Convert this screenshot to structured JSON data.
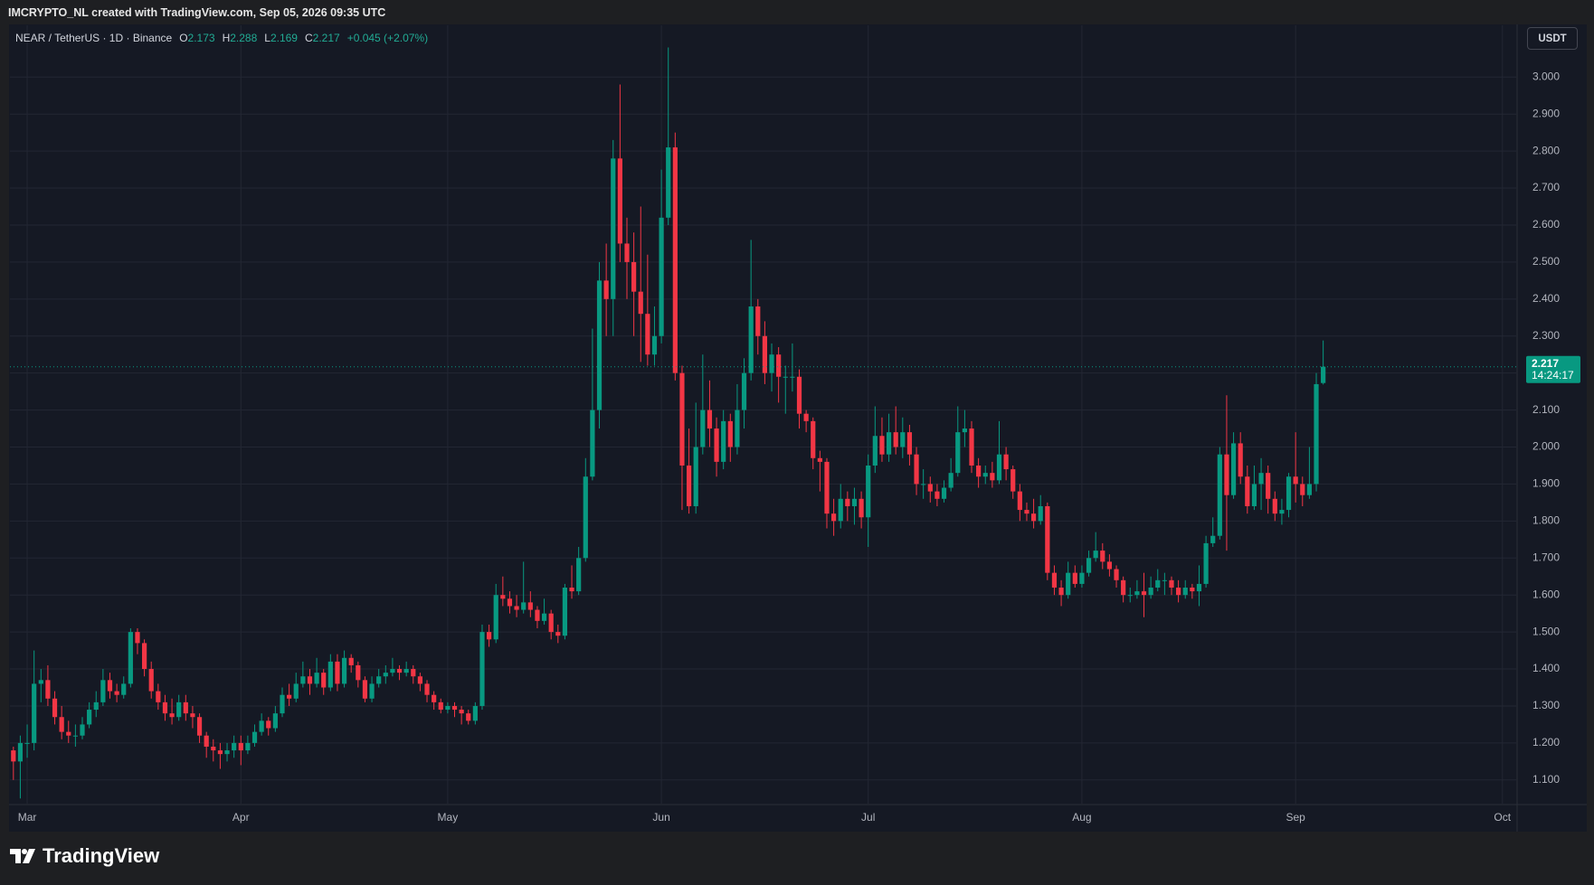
{
  "header": {
    "attribution": "IMCRYPTO_NL created with TradingView.com, Sep 05, 2026 09:35 UTC"
  },
  "footer": {
    "logo": "TradingView"
  },
  "chart_data": {
    "type": "candlestick",
    "symbol": "NEAR / TetherUS · 1D · Binance",
    "ohlc_labels": [
      "O",
      "H",
      "L",
      "C"
    ],
    "change": "+0.045 (+2.07%)",
    "currency": "USDT",
    "countdown": "14:24:17",
    "up_color": "#089981",
    "down_color": "#f23645",
    "grid": true,
    "ylim": [
      1.036,
      3.14
    ],
    "yticks": [
      {
        "value": 1.1,
        "label": "1.100"
      },
      {
        "value": 1.2,
        "label": "1.200"
      },
      {
        "value": 1.3,
        "label": "1.300"
      },
      {
        "value": 1.4,
        "label": "1.400"
      },
      {
        "value": 1.5,
        "label": "1.500"
      },
      {
        "value": 1.6,
        "label": "1.600"
      },
      {
        "value": 1.7,
        "label": "1.700"
      },
      {
        "value": 1.8,
        "label": "1.800"
      },
      {
        "value": 1.9,
        "label": "1.900"
      },
      {
        "value": 2.0,
        "label": "2.000"
      },
      {
        "value": 2.1,
        "label": "2.100"
      },
      {
        "value": 2.2,
        "label": "2.200"
      },
      {
        "value": 2.3,
        "label": "2.300"
      },
      {
        "value": 2.4,
        "label": "2.400"
      },
      {
        "value": 2.5,
        "label": "2.500"
      },
      {
        "value": 2.6,
        "label": "2.600"
      },
      {
        "value": 2.7,
        "label": "2.700"
      },
      {
        "value": 2.8,
        "label": "2.800"
      },
      {
        "value": 2.9,
        "label": "2.900"
      },
      {
        "value": 3.0,
        "label": "3.000"
      }
    ],
    "xlim": [
      -0.5,
      218
    ],
    "xticks": [
      {
        "value": 2,
        "label": "Mar"
      },
      {
        "value": 33,
        "label": "Apr"
      },
      {
        "value": 63,
        "label": "May"
      },
      {
        "value": 94,
        "label": "Jun"
      },
      {
        "value": 124,
        "label": "Jul"
      },
      {
        "value": 155,
        "label": "Aug"
      },
      {
        "value": 186,
        "label": "Sep"
      },
      {
        "value": 216,
        "label": "Oct"
      }
    ],
    "ohlc": [
      [
        1.18,
        1.19,
        1.1,
        1.15
      ],
      [
        1.15,
        1.22,
        1.05,
        1.2
      ],
      [
        1.2,
        1.25,
        1.16,
        1.2
      ],
      [
        1.2,
        1.45,
        1.18,
        1.36
      ],
      [
        1.36,
        1.4,
        1.31,
        1.37
      ],
      [
        1.37,
        1.41,
        1.3,
        1.32
      ],
      [
        1.32,
        1.34,
        1.25,
        1.27
      ],
      [
        1.27,
        1.3,
        1.21,
        1.23
      ],
      [
        1.23,
        1.26,
        1.2,
        1.22
      ],
      [
        1.22,
        1.25,
        1.19,
        1.22
      ],
      [
        1.22,
        1.27,
        1.21,
        1.25
      ],
      [
        1.25,
        1.31,
        1.24,
        1.29
      ],
      [
        1.29,
        1.34,
        1.27,
        1.31
      ],
      [
        1.31,
        1.4,
        1.3,
        1.37
      ],
      [
        1.37,
        1.39,
        1.32,
        1.34
      ],
      [
        1.34,
        1.36,
        1.31,
        1.33
      ],
      [
        1.33,
        1.38,
        1.32,
        1.36
      ],
      [
        1.36,
        1.51,
        1.35,
        1.5
      ],
      [
        1.5,
        1.51,
        1.44,
        1.47
      ],
      [
        1.47,
        1.48,
        1.38,
        1.4
      ],
      [
        1.4,
        1.42,
        1.32,
        1.34
      ],
      [
        1.34,
        1.36,
        1.29,
        1.31
      ],
      [
        1.31,
        1.33,
        1.26,
        1.28
      ],
      [
        1.28,
        1.32,
        1.25,
        1.27
      ],
      [
        1.27,
        1.33,
        1.26,
        1.31
      ],
      [
        1.31,
        1.33,
        1.26,
        1.28
      ],
      [
        1.28,
        1.3,
        1.24,
        1.27
      ],
      [
        1.27,
        1.28,
        1.2,
        1.22
      ],
      [
        1.22,
        1.23,
        1.16,
        1.19
      ],
      [
        1.19,
        1.21,
        1.15,
        1.18
      ],
      [
        1.18,
        1.2,
        1.13,
        1.17
      ],
      [
        1.17,
        1.2,
        1.15,
        1.18
      ],
      [
        1.18,
        1.22,
        1.16,
        1.2
      ],
      [
        1.2,
        1.22,
        1.14,
        1.18
      ],
      [
        1.18,
        1.22,
        1.17,
        1.2
      ],
      [
        1.2,
        1.25,
        1.19,
        1.23
      ],
      [
        1.23,
        1.28,
        1.22,
        1.26
      ],
      [
        1.26,
        1.27,
        1.22,
        1.24
      ],
      [
        1.24,
        1.3,
        1.23,
        1.28
      ],
      [
        1.28,
        1.35,
        1.27,
        1.33
      ],
      [
        1.33,
        1.36,
        1.3,
        1.32
      ],
      [
        1.32,
        1.39,
        1.31,
        1.36
      ],
      [
        1.36,
        1.42,
        1.35,
        1.38
      ],
      [
        1.38,
        1.4,
        1.33,
        1.36
      ],
      [
        1.36,
        1.43,
        1.35,
        1.39
      ],
      [
        1.39,
        1.4,
        1.33,
        1.35
      ],
      [
        1.35,
        1.44,
        1.34,
        1.42
      ],
      [
        1.42,
        1.44,
        1.34,
        1.36
      ],
      [
        1.36,
        1.45,
        1.35,
        1.43
      ],
      [
        1.43,
        1.44,
        1.39,
        1.41
      ],
      [
        1.41,
        1.42,
        1.35,
        1.37
      ],
      [
        1.37,
        1.38,
        1.31,
        1.32
      ],
      [
        1.32,
        1.38,
        1.31,
        1.36
      ],
      [
        1.36,
        1.4,
        1.35,
        1.38
      ],
      [
        1.38,
        1.41,
        1.36,
        1.39
      ],
      [
        1.39,
        1.43,
        1.38,
        1.4
      ],
      [
        1.4,
        1.41,
        1.37,
        1.39
      ],
      [
        1.39,
        1.42,
        1.38,
        1.4
      ],
      [
        1.4,
        1.41,
        1.36,
        1.38
      ],
      [
        1.38,
        1.39,
        1.34,
        1.36
      ],
      [
        1.36,
        1.37,
        1.31,
        1.33
      ],
      [
        1.33,
        1.34,
        1.29,
        1.31
      ],
      [
        1.31,
        1.32,
        1.28,
        1.29
      ],
      [
        1.29,
        1.31,
        1.28,
        1.3
      ],
      [
        1.3,
        1.31,
        1.27,
        1.29
      ],
      [
        1.29,
        1.3,
        1.25,
        1.28
      ],
      [
        1.28,
        1.29,
        1.25,
        1.26
      ],
      [
        1.26,
        1.31,
        1.25,
        1.3
      ],
      [
        1.3,
        1.52,
        1.29,
        1.5
      ],
      [
        1.5,
        1.52,
        1.46,
        1.48
      ],
      [
        1.48,
        1.63,
        1.47,
        1.6
      ],
      [
        1.6,
        1.65,
        1.57,
        1.59
      ],
      [
        1.59,
        1.61,
        1.55,
        1.57
      ],
      [
        1.57,
        1.6,
        1.54,
        1.56
      ],
      [
        1.56,
        1.69,
        1.55,
        1.58
      ],
      [
        1.58,
        1.61,
        1.54,
        1.56
      ],
      [
        1.56,
        1.57,
        1.51,
        1.53
      ],
      [
        1.53,
        1.59,
        1.52,
        1.55
      ],
      [
        1.55,
        1.56,
        1.48,
        1.5
      ],
      [
        1.5,
        1.52,
        1.47,
        1.49
      ],
      [
        1.49,
        1.63,
        1.48,
        1.62
      ],
      [
        1.62,
        1.68,
        1.59,
        1.61
      ],
      [
        1.61,
        1.73,
        1.6,
        1.7
      ],
      [
        1.7,
        1.97,
        1.69,
        1.92
      ],
      [
        1.92,
        2.32,
        1.91,
        2.1
      ],
      [
        2.1,
        2.5,
        2.05,
        2.45
      ],
      [
        2.45,
        2.55,
        2.3,
        2.4
      ],
      [
        2.4,
        2.83,
        2.3,
        2.78
      ],
      [
        2.78,
        2.98,
        2.5,
        2.55
      ],
      [
        2.55,
        2.62,
        2.4,
        2.5
      ],
      [
        2.5,
        2.58,
        2.3,
        2.42
      ],
      [
        2.42,
        2.65,
        2.23,
        2.36
      ],
      [
        2.36,
        2.52,
        2.22,
        2.25
      ],
      [
        2.25,
        2.38,
        2.22,
        2.3
      ],
      [
        2.3,
        2.75,
        2.28,
        2.62
      ],
      [
        2.62,
        3.08,
        2.6,
        2.81
      ],
      [
        2.81,
        2.85,
        2.18,
        2.2
      ],
      [
        2.2,
        2.22,
        1.83,
        1.95
      ],
      [
        1.95,
        2.05,
        1.82,
        1.84
      ],
      [
        1.84,
        2.12,
        1.82,
        2.0
      ],
      [
        2.0,
        2.25,
        1.98,
        2.1
      ],
      [
        2.1,
        2.18,
        2.0,
        2.05
      ],
      [
        2.05,
        2.08,
        1.92,
        1.96
      ],
      [
        1.96,
        2.1,
        1.94,
        2.07
      ],
      [
        2.07,
        2.09,
        1.96,
        2.0
      ],
      [
        2.0,
        2.17,
        1.98,
        2.1
      ],
      [
        2.1,
        2.24,
        2.05,
        2.2
      ],
      [
        2.2,
        2.56,
        2.18,
        2.38
      ],
      [
        2.38,
        2.4,
        2.25,
        2.3
      ],
      [
        2.3,
        2.34,
        2.17,
        2.2
      ],
      [
        2.2,
        2.28,
        2.15,
        2.25
      ],
      [
        2.25,
        2.27,
        2.12,
        2.19
      ],
      [
        2.19,
        2.22,
        2.09,
        2.19
      ],
      [
        2.19,
        2.28,
        2.15,
        2.19
      ],
      [
        2.19,
        2.21,
        2.05,
        2.09
      ],
      [
        2.09,
        2.1,
        2.04,
        2.07
      ],
      [
        2.07,
        2.08,
        1.94,
        1.97
      ],
      [
        1.97,
        1.99,
        1.88,
        1.96
      ],
      [
        1.96,
        1.97,
        1.78,
        1.82
      ],
      [
        1.82,
        1.86,
        1.76,
        1.8
      ],
      [
        1.8,
        1.9,
        1.78,
        1.86
      ],
      [
        1.86,
        1.88,
        1.8,
        1.84
      ],
      [
        1.84,
        1.89,
        1.79,
        1.86
      ],
      [
        1.86,
        1.88,
        1.78,
        1.81
      ],
      [
        1.81,
        1.98,
        1.73,
        1.95
      ],
      [
        1.95,
        2.11,
        1.93,
        2.03
      ],
      [
        2.03,
        2.08,
        1.96,
        1.98
      ],
      [
        1.98,
        2.09,
        1.96,
        2.04
      ],
      [
        2.04,
        2.11,
        1.98,
        2.0
      ],
      [
        2.0,
        2.08,
        1.97,
        2.04
      ],
      [
        2.04,
        2.06,
        1.95,
        1.98
      ],
      [
        1.98,
        2.0,
        1.87,
        1.9
      ],
      [
        1.9,
        1.94,
        1.86,
        1.9
      ],
      [
        1.9,
        1.92,
        1.85,
        1.88
      ],
      [
        1.88,
        1.9,
        1.84,
        1.86
      ],
      [
        1.86,
        1.91,
        1.85,
        1.89
      ],
      [
        1.89,
        1.97,
        1.88,
        1.93
      ],
      [
        1.93,
        2.11,
        1.92,
        2.04
      ],
      [
        2.04,
        2.1,
        2.0,
        2.05
      ],
      [
        2.05,
        2.07,
        1.93,
        1.95
      ],
      [
        1.95,
        1.97,
        1.89,
        1.92
      ],
      [
        1.92,
        1.95,
        1.9,
        1.93
      ],
      [
        1.93,
        1.96,
        1.89,
        1.91
      ],
      [
        1.91,
        2.07,
        1.9,
        1.98
      ],
      [
        1.98,
        2.0,
        1.91,
        1.94
      ],
      [
        1.94,
        1.95,
        1.86,
        1.88
      ],
      [
        1.88,
        1.9,
        1.8,
        1.83
      ],
      [
        1.83,
        1.85,
        1.8,
        1.82
      ],
      [
        1.82,
        1.86,
        1.78,
        1.8
      ],
      [
        1.8,
        1.87,
        1.79,
        1.84
      ],
      [
        1.84,
        1.85,
        1.64,
        1.66
      ],
      [
        1.66,
        1.68,
        1.6,
        1.62
      ],
      [
        1.62,
        1.64,
        1.57,
        1.6
      ],
      [
        1.6,
        1.69,
        1.59,
        1.66
      ],
      [
        1.66,
        1.68,
        1.62,
        1.63
      ],
      [
        1.63,
        1.68,
        1.62,
        1.66
      ],
      [
        1.66,
        1.72,
        1.65,
        1.7
      ],
      [
        1.7,
        1.77,
        1.69,
        1.72
      ],
      [
        1.72,
        1.74,
        1.67,
        1.69
      ],
      [
        1.69,
        1.71,
        1.65,
        1.67
      ],
      [
        1.67,
        1.68,
        1.62,
        1.64
      ],
      [
        1.64,
        1.65,
        1.58,
        1.6
      ],
      [
        1.6,
        1.62,
        1.58,
        1.6
      ],
      [
        1.6,
        1.64,
        1.59,
        1.61
      ],
      [
        1.61,
        1.66,
        1.54,
        1.6
      ],
      [
        1.6,
        1.65,
        1.59,
        1.62
      ],
      [
        1.62,
        1.67,
        1.61,
        1.64
      ],
      [
        1.64,
        1.66,
        1.6,
        1.64
      ],
      [
        1.64,
        1.65,
        1.6,
        1.62
      ],
      [
        1.62,
        1.64,
        1.58,
        1.6
      ],
      [
        1.6,
        1.64,
        1.59,
        1.62
      ],
      [
        1.62,
        1.63,
        1.59,
        1.61
      ],
      [
        1.61,
        1.68,
        1.57,
        1.63
      ],
      [
        1.63,
        1.76,
        1.62,
        1.74
      ],
      [
        1.74,
        1.81,
        1.73,
        1.76
      ],
      [
        1.76,
        2.0,
        1.75,
        1.98
      ],
      [
        1.98,
        2.14,
        1.72,
        1.87
      ],
      [
        1.87,
        2.04,
        1.86,
        2.01
      ],
      [
        2.01,
        2.04,
        1.9,
        1.92
      ],
      [
        1.92,
        1.95,
        1.82,
        1.84
      ],
      [
        1.84,
        1.95,
        1.83,
        1.9
      ],
      [
        1.9,
        1.97,
        1.83,
        1.93
      ],
      [
        1.93,
        1.95,
        1.82,
        1.86
      ],
      [
        1.86,
        1.88,
        1.8,
        1.82
      ],
      [
        1.82,
        1.86,
        1.79,
        1.83
      ],
      [
        1.83,
        1.93,
        1.81,
        1.92
      ],
      [
        1.92,
        2.04,
        1.85,
        1.9
      ],
      [
        1.9,
        1.92,
        1.84,
        1.87
      ],
      [
        1.87,
        2.0,
        1.86,
        1.9
      ],
      [
        1.9,
        2.2,
        1.88,
        2.17
      ],
      [
        2.173,
        2.288,
        2.169,
        2.217
      ]
    ]
  }
}
